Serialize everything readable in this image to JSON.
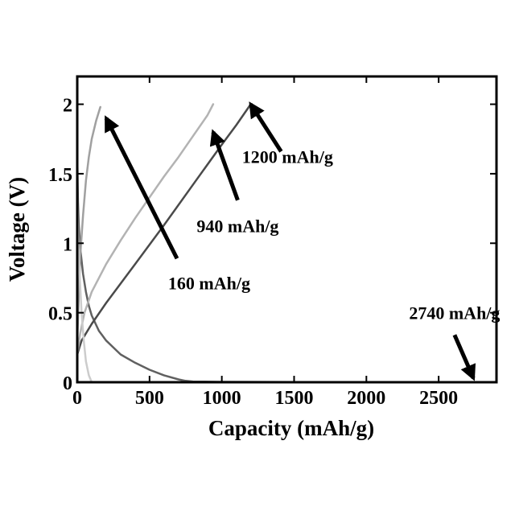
{
  "chart_data": {
    "type": "line",
    "xlabel": "Capacity (mAh/g)",
    "ylabel": "Voltage (V)",
    "xlim": [
      0,
      2900
    ],
    "ylim": [
      0,
      2.2
    ],
    "x_ticks": [
      "0",
      "500",
      "1000",
      "1500",
      "2000",
      "2500"
    ],
    "x_tick_values": [
      0,
      500,
      1000,
      1500,
      2000,
      2500
    ],
    "y_ticks": [
      "0",
      "0.5",
      "1",
      "1.5",
      "2"
    ],
    "y_tick_values": [
      0,
      0.5,
      1,
      1.5,
      2
    ],
    "grid": false,
    "series": [
      {
        "color": "#606060",
        "x": [
          0,
          5,
          10,
          20,
          40,
          60,
          80,
          100,
          150,
          200,
          300,
          400,
          500,
          600,
          700,
          750,
          800,
          1000,
          1500,
          2000,
          2500,
          2740
        ],
        "y": [
          1.65,
          1.3,
          1.15,
          0.97,
          0.78,
          0.65,
          0.55,
          0.48,
          0.37,
          0.3,
          0.2,
          0.14,
          0.09,
          0.05,
          0.02,
          0.01,
          0.005,
          0.003,
          0.002,
          0.002,
          0.001,
          0.0
        ]
      },
      {
        "color": "#4a4a4a",
        "x": [
          0,
          30,
          100,
          200,
          400,
          600,
          800,
          1000,
          1100,
          1200
        ],
        "y": [
          0.2,
          0.3,
          0.42,
          0.57,
          0.85,
          1.13,
          1.42,
          1.71,
          1.85,
          2.0
        ]
      },
      {
        "color": "#b3b3b3",
        "x": [
          0,
          20,
          50,
          100,
          200,
          300,
          400,
          500,
          600,
          700,
          800,
          900,
          940
        ],
        "y": [
          0.2,
          0.35,
          0.5,
          0.65,
          0.85,
          1.02,
          1.18,
          1.33,
          1.48,
          1.62,
          1.77,
          1.92,
          2.0
        ]
      },
      {
        "color": "#a0a0a0",
        "x": [
          0,
          10,
          20,
          40,
          60,
          80,
          100,
          130,
          160
        ],
        "y": [
          0.3,
          0.6,
          0.9,
          1.2,
          1.45,
          1.62,
          1.75,
          1.88,
          1.98
        ]
      },
      {
        "color": "#cccccc",
        "x": [
          0,
          5,
          10,
          20,
          30,
          45,
          60,
          80,
          100
        ],
        "y": [
          1.35,
          1.1,
          0.9,
          0.7,
          0.5,
          0.3,
          0.15,
          0.05,
          0.0
        ]
      }
    ],
    "annotations": [
      {
        "text": "1200 mAh/g",
        "arrow_to": [
          1200,
          2.0
        ],
        "arrow_from": [
          1410,
          1.66
        ]
      },
      {
        "text": "940 mAh/g",
        "arrow_to": [
          940,
          1.8
        ],
        "arrow_from": [
          1110,
          1.31
        ]
      },
      {
        "text": "160 mAh/g",
        "arrow_to": [
          200,
          1.9
        ],
        "arrow_from": [
          690,
          0.89
        ]
      },
      {
        "text": "2740 mAh/g",
        "arrow_to": [
          2740,
          0.03
        ],
        "arrow_from": [
          2610,
          0.34
        ]
      }
    ]
  }
}
